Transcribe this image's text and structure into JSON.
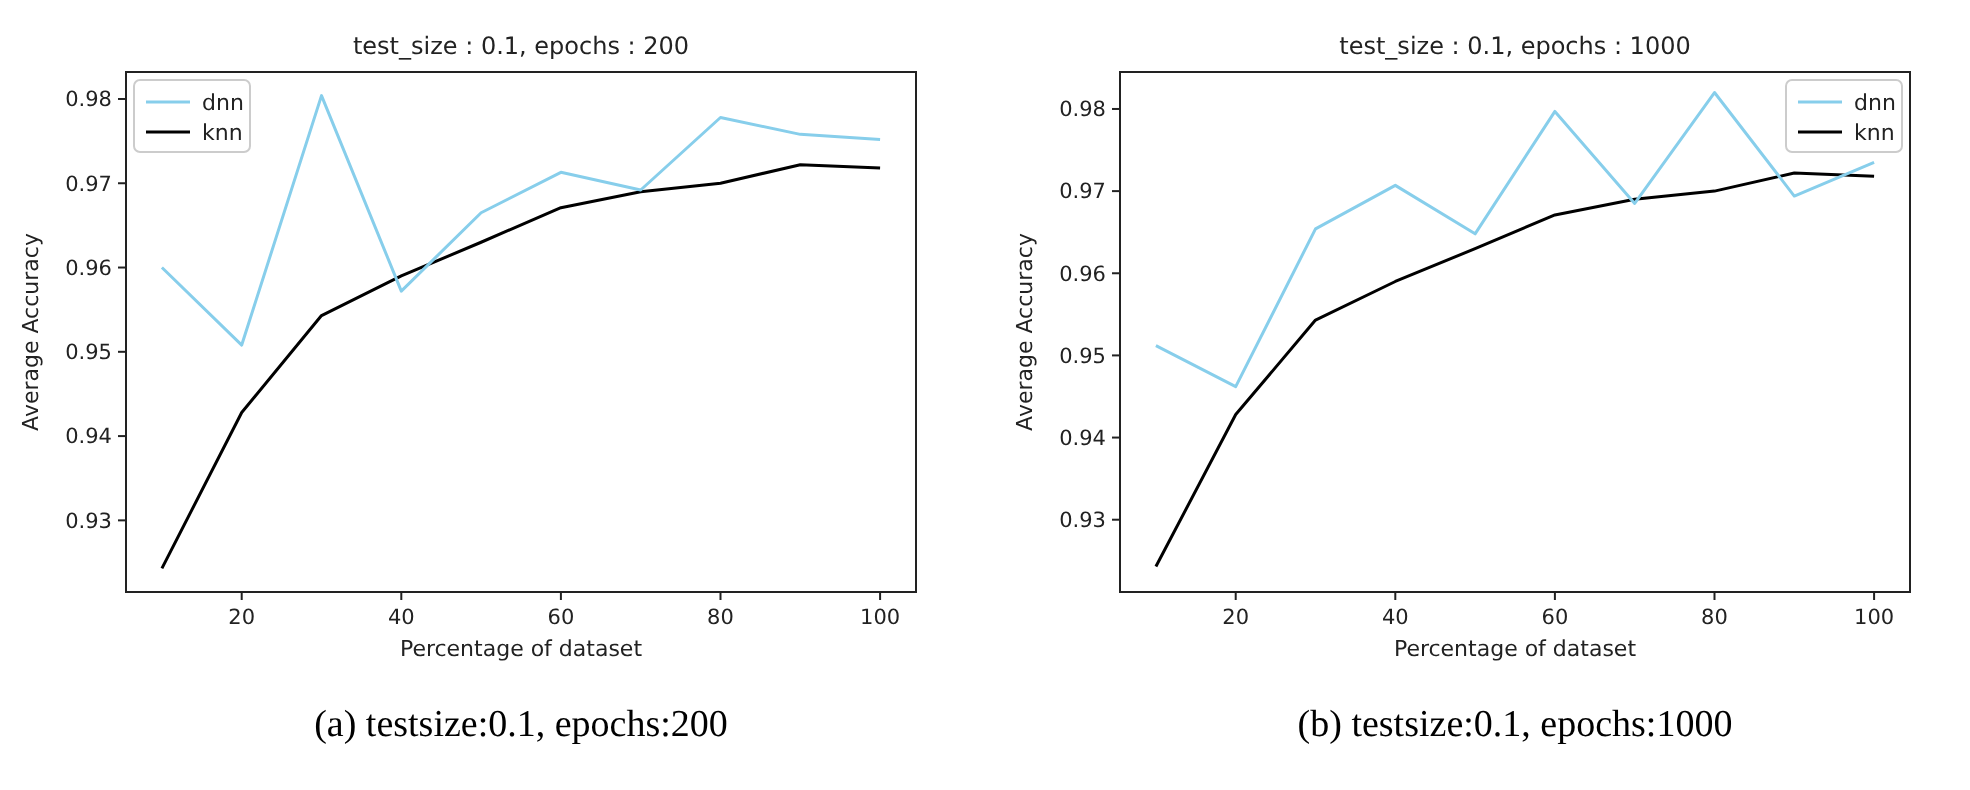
{
  "chart_data": [
    {
      "type": "line",
      "title": "test_size : 0.1, epochs : 200",
      "xlabel": "Percentage of dataset",
      "ylabel": "Average Accuracy",
      "x": [
        10,
        20,
        30,
        40,
        50,
        60,
        70,
        80,
        90,
        100
      ],
      "xlim": [
        5.5,
        104.5
      ],
      "xticks": [
        20,
        40,
        60,
        80,
        100
      ],
      "ylim": [
        0.9215,
        0.9832
      ],
      "yticks": [
        0.93,
        0.94,
        0.95,
        0.96,
        0.97,
        0.98
      ],
      "legend": "top left",
      "marker": "none",
      "line_style": "solid",
      "annotations": [
        "(a) testsize:0.1, epochs:200"
      ],
      "series": [
        {
          "name": "dnn",
          "color": "#87ceeb",
          "values": [
            0.96,
            0.9508,
            0.9804,
            0.9572,
            0.9665,
            0.9713,
            0.9692,
            0.9778,
            0.9758,
            0.9752
          ]
        },
        {
          "name": "knn",
          "color": "#000000",
          "values": [
            0.9243,
            0.9428,
            0.9543,
            0.959,
            0.963,
            0.9671,
            0.969,
            0.97,
            0.9722,
            0.9718
          ]
        }
      ]
    },
    {
      "type": "line",
      "title": "test_size : 0.1, epochs : 1000",
      "xlabel": "Percentage of dataset",
      "ylabel": "Average Accuracy",
      "x": [
        10,
        20,
        30,
        40,
        50,
        60,
        70,
        80,
        90,
        100
      ],
      "xlim": [
        5.5,
        104.5
      ],
      "xticks": [
        20,
        40,
        60,
        80,
        100
      ],
      "ylim": [
        0.9212,
        0.9845
      ],
      "yticks": [
        0.93,
        0.94,
        0.95,
        0.96,
        0.97,
        0.98
      ],
      "legend": "top right",
      "marker": "none",
      "line_style": "solid",
      "annotations": [
        "(b) testsize:0.1, epochs:1000"
      ],
      "series": [
        {
          "name": "dnn",
          "color": "#87ceeb",
          "values": [
            0.9512,
            0.9462,
            0.9654,
            0.9707,
            0.9648,
            0.9797,
            0.9685,
            0.982,
            0.9694,
            0.9735
          ]
        },
        {
          "name": "knn",
          "color": "#000000",
          "values": [
            0.9243,
            0.9428,
            0.9543,
            0.959,
            0.963,
            0.9671,
            0.969,
            0.97,
            0.9722,
            0.9718
          ]
        }
      ]
    }
  ]
}
